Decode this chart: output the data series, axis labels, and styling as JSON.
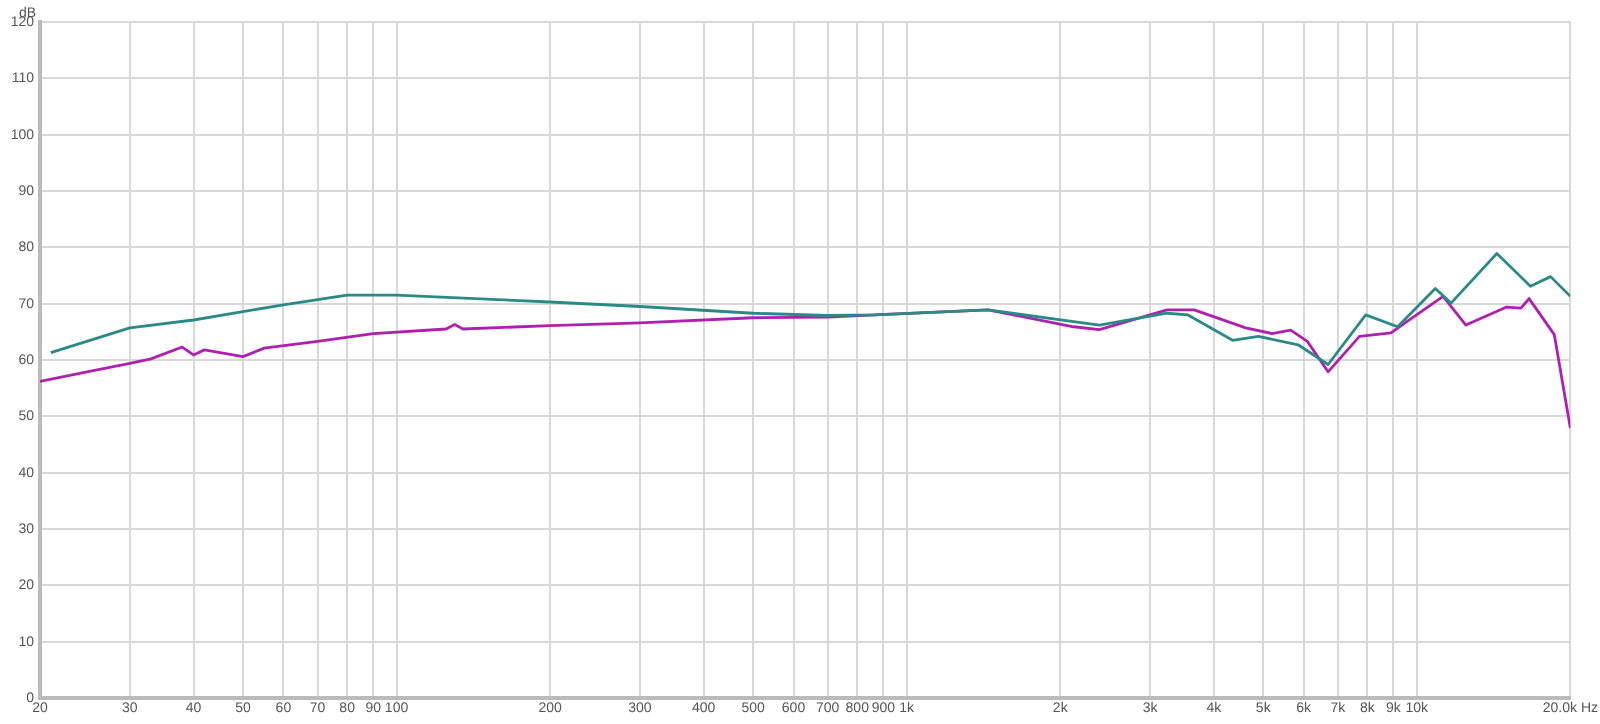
{
  "chart_data": {
    "type": "line",
    "ylabel": "dB",
    "log": "x",
    "grid": true,
    "legend": false,
    "marker": "none",
    "line_style": "solid",
    "xlim": [
      20,
      20000
    ],
    "ylim": [
      0,
      120
    ],
    "xticks": [
      20,
      30,
      40,
      50,
      60,
      70,
      80,
      90,
      100,
      200,
      300,
      400,
      500,
      600,
      700,
      800,
      900,
      {
        "value": 1000,
        "label": "1k"
      },
      {
        "value": 2000,
        "label": "2k"
      },
      {
        "value": 3000,
        "label": "3k"
      },
      {
        "value": 4000,
        "label": "4k"
      },
      {
        "value": 5000,
        "label": "5k"
      },
      {
        "value": 6000,
        "label": "6k"
      },
      {
        "value": 7000,
        "label": "7k"
      },
      {
        "value": 8000,
        "label": "8k"
      },
      {
        "value": 9000,
        "label": "9k"
      },
      {
        "value": 10000,
        "label": "10k"
      },
      {
        "value": 20000,
        "label": "20.0k Hz"
      }
    ],
    "yticks": [
      0,
      10,
      20,
      30,
      40,
      50,
      60,
      70,
      80,
      90,
      100,
      110,
      120
    ],
    "series": [
      {
        "color": "#2a8a86",
        "x": [
          21,
          30,
          40,
          50,
          60,
          80,
          100,
          150,
          200,
          300,
          500,
          700,
          866,
          1443,
          2124,
          2387,
          3238,
          3560,
          4354,
          4890,
          5852,
          6700,
          7940,
          9170,
          10870,
          11670,
          14350,
          16700,
          18290,
          20000
        ],
        "values": [
          61.3,
          65.7,
          67.1,
          68.6,
          69.8,
          71.5,
          71.5,
          70.8,
          70.3,
          69.5,
          68.3,
          67.9,
          68.0,
          68.9,
          66.8,
          66.2,
          68.3,
          68.0,
          63.5,
          64.2,
          62.7,
          59.2,
          68.0,
          65.9,
          72.7,
          70.1,
          78.9,
          73.1,
          74.8,
          71.3
        ]
      },
      {
        "color": "#b020b0",
        "x": [
          20,
          25,
          30,
          33,
          38,
          40,
          42,
          50,
          55,
          70,
          90,
          125,
          130,
          135,
          200,
          300,
          500,
          700,
          866,
          1443,
          2124,
          2387,
          3238,
          3660,
          4620,
          5200,
          5660,
          6100,
          6700,
          7720,
          8900,
          9560,
          11260,
          12480,
          15000,
          16000,
          16600,
          18600,
          20000
        ],
        "values": [
          56.2,
          58.0,
          59.4,
          60.2,
          62.3,
          60.9,
          61.8,
          60.6,
          62.1,
          63.3,
          64.7,
          65.5,
          66.3,
          65.5,
          66.1,
          66.6,
          67.5,
          67.6,
          68.0,
          68.9,
          65.9,
          65.4,
          68.9,
          68.9,
          65.7,
          64.7,
          65.3,
          63.3,
          57.9,
          64.2,
          64.8,
          66.8,
          71.3,
          66.2,
          69.4,
          69.2,
          70.9,
          64.5,
          47.9
        ]
      }
    ]
  }
}
